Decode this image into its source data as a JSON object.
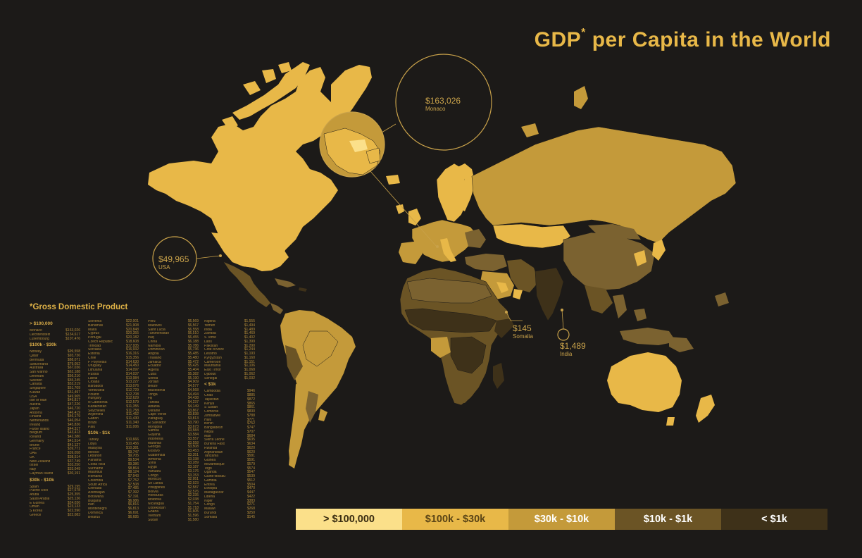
{
  "title": {
    "text": "GDP",
    "sup": "*",
    "rest": " per Capita in the World"
  },
  "footnote": "*Gross Domestic Product",
  "colors": {
    "background": "#1c1a18",
    "tier1": "#fbe08a",
    "tier2": "#e8b848",
    "tier3": "#c49a3a",
    "tier4": "#7b6230",
    "tier5": "#4a3a1f",
    "accent": "#c9a24a"
  },
  "callouts": {
    "monaco": {
      "value": "$163,026",
      "country": "Monaco"
    },
    "usa": {
      "value": "$49,965",
      "country": "USA"
    },
    "somalia": {
      "value": "$145",
      "country": "Somalia"
    },
    "india": {
      "value": "$1,489",
      "country": "India"
    }
  },
  "legend": [
    {
      "label": "> $100,000",
      "color": "#fbe08a",
      "text_color": "#3a2d12"
    },
    {
      "label": "$100k - $30k",
      "color": "#e8b848",
      "text_color": "#5a4416"
    },
    {
      "label": "$30k - $10k",
      "color": "#c49a3a",
      "text_color": "#ffffff"
    },
    {
      "label": "$10k - $1k",
      "color": "#6b5425",
      "text_color": "#ffffff"
    },
    {
      "label": "< $1k",
      "color": "#3e3119",
      "text_color": "#ffffff"
    }
  ],
  "columns": [
    [
      {
        "header": "> $100,000"
      },
      {
        "c": "Monaco",
        "v": "$163,026"
      },
      {
        "c": "Liechtenstein",
        "v": "$134,617"
      },
      {
        "c": "Luxembourg",
        "v": "$107,476"
      },
      {
        "header": "$100k - $30k"
      },
      {
        "c": "Norway",
        "v": "$99,558"
      },
      {
        "c": "Qatar",
        "v": "$93,736"
      },
      {
        "c": "Bermuda",
        "v": "$88,071"
      },
      {
        "c": "Switzerland",
        "v": "$79,052"
      },
      {
        "c": "Australia",
        "v": "$67,036"
      },
      {
        "c": "San Marino",
        "v": "$62,188"
      },
      {
        "c": "Denmark",
        "v": "$56,210"
      },
      {
        "c": "Sweden",
        "v": "$55,245"
      },
      {
        "c": "Canada",
        "v": "$52,219"
      },
      {
        "c": "Singapore",
        "v": "$51,709"
      },
      {
        "c": "Kuwait",
        "v": "$51,497"
      },
      {
        "c": "USA",
        "v": "$49,965"
      },
      {
        "c": "Isle of Man",
        "v": "$49,817"
      },
      {
        "c": "Austria",
        "v": "$47,226"
      },
      {
        "c": "Japan",
        "v": "$46,720"
      },
      {
        "c": "Andorra",
        "v": "$46,419"
      },
      {
        "c": "Finland",
        "v": "$46,179"
      },
      {
        "c": "Netherlands",
        "v": "$46,054"
      },
      {
        "c": "Ireland",
        "v": "$45,836"
      },
      {
        "c": "Faroe Island",
        "v": "$44,317"
      },
      {
        "c": "Belgium",
        "v": "$43,413"
      },
      {
        "c": "Iceland",
        "v": "$42,380"
      },
      {
        "c": "Germany",
        "v": "$41,514"
      },
      {
        "c": "Brunei",
        "v": "$41,127"
      },
      {
        "c": "France",
        "v": "$39,771"
      },
      {
        "c": "UAE",
        "v": "$39,058"
      },
      {
        "c": "UK",
        "v": "$38,514"
      },
      {
        "c": "New Zealand",
        "v": "$37,749"
      },
      {
        "c": "Israel",
        "v": "$33,250"
      },
      {
        "c": "Italy",
        "v": "$33,049"
      },
      {
        "c": "Cayman Island",
        "v": "$30,191"
      },
      {
        "header": "$30k - $10k"
      },
      {
        "c": "Spain",
        "v": "$29,195"
      },
      {
        "c": "Puerto Rico",
        "v": "$27,678"
      },
      {
        "c": "Aruba",
        "v": "$25,355"
      },
      {
        "c": "Saudi Arabia",
        "v": "$25,136"
      },
      {
        "c": "E Guinea",
        "v": "$24,036"
      },
      {
        "c": "Oman",
        "v": "$23,133"
      },
      {
        "c": "S Korea",
        "v": "$22,590"
      },
      {
        "c": "Greece",
        "v": "$22,083"
      }
    ],
    [
      {
        "c": "Slovenia",
        "v": "$22,001"
      },
      {
        "c": "Bahamas",
        "v": "$21,908"
      },
      {
        "c": "Malta",
        "v": "$20,848"
      },
      {
        "c": "Cyprus",
        "v": "$20,355"
      },
      {
        "c": "Portugal",
        "v": "$20,182"
      },
      {
        "c": "Czech Republic",
        "v": "$18,608"
      },
      {
        "c": "Trinidad",
        "v": "$17,935"
      },
      {
        "c": "Slovakia",
        "v": "$16,932"
      },
      {
        "c": "Estonia",
        "v": "$16,316"
      },
      {
        "c": "Chile",
        "v": "$15,356"
      },
      {
        "c": "F Polynesia",
        "v": "$14,630"
      },
      {
        "c": "Uruguay",
        "v": "$14,450"
      },
      {
        "c": "Lithuania",
        "v": "$14,097"
      },
      {
        "c": "Russia",
        "v": "$14,037"
      },
      {
        "c": "Latvia",
        "v": "$13,984"
      },
      {
        "c": "Croatia",
        "v": "$13,227"
      },
      {
        "c": "Barbados",
        "v": "$13,076"
      },
      {
        "c": "Venezuela",
        "v": "$12,729"
      },
      {
        "c": "Poland",
        "v": "$12,708"
      },
      {
        "c": "Hungary",
        "v": "$12,629"
      },
      {
        "c": "N Caledonia",
        "v": "$12,579"
      },
      {
        "c": "Kazakhstan",
        "v": "$11,355"
      },
      {
        "c": "Seychelles",
        "v": "$11,758"
      },
      {
        "c": "Argentina",
        "v": "$11,452"
      },
      {
        "c": "Gabon",
        "v": "$11,430"
      },
      {
        "c": "Brazil",
        "v": "$11,340"
      },
      {
        "c": "Palu",
        "v": "$11,006"
      },
      {
        "header": "$10k - $1k"
      },
      {
        "c": "Turkey",
        "v": "$10,666"
      },
      {
        "c": "Libya",
        "v": "$10,456"
      },
      {
        "c": "Malaysia",
        "v": "$10,381"
      },
      {
        "c": "Mexico",
        "v": "$9,747"
      },
      {
        "c": "Lebanon",
        "v": "$9,705"
      },
      {
        "c": "Panama",
        "v": "$9,534"
      },
      {
        "c": "Costa Rica",
        "v": "$9,386"
      },
      {
        "c": "Suriname",
        "v": "$8,864"
      },
      {
        "c": "Mauritius",
        "v": "$8,124"
      },
      {
        "c": "Romania",
        "v": "$7,943"
      },
      {
        "c": "Colombia",
        "v": "$7,752"
      },
      {
        "c": "South Africa",
        "v": "$7,508"
      },
      {
        "c": "Grenada",
        "v": "$7,485"
      },
      {
        "c": "Azerbaijan",
        "v": "$7,392"
      },
      {
        "c": "Botswana",
        "v": "$7,191"
      },
      {
        "c": "Bulgaria",
        "v": "$6,986"
      },
      {
        "c": "Iran",
        "v": "$6,816"
      },
      {
        "c": "Montenegro",
        "v": "$6,813"
      },
      {
        "c": "Dominica",
        "v": "$6,691"
      },
      {
        "c": "Belarus",
        "v": "$6,685"
      }
    ],
    [
      {
        "c": "Peru",
        "v": "$6,569"
      },
      {
        "c": "Maldives",
        "v": "$6,567"
      },
      {
        "c": "Saint Lucia",
        "v": "$6,558"
      },
      {
        "c": "Turkmenistan",
        "v": "$6,510"
      },
      {
        "c": "Iraq",
        "v": "$6,455"
      },
      {
        "c": "China",
        "v": "$6,188"
      },
      {
        "c": "Namibia",
        "v": "$5,786"
      },
      {
        "c": "Dominican",
        "v": "$5,736"
      },
      {
        "c": "Angola",
        "v": "$5,485"
      },
      {
        "c": "Thailand",
        "v": "$5,480"
      },
      {
        "c": "Jamaica",
        "v": "$5,472"
      },
      {
        "c": "Ecuador",
        "v": "$5,425"
      },
      {
        "c": "Algeria",
        "v": "$5,404"
      },
      {
        "c": "Cuba",
        "v": "$5,382"
      },
      {
        "c": "Serbia",
        "v": "$5,190"
      },
      {
        "c": "Jordan",
        "v": "$4,909"
      },
      {
        "c": "Belize",
        "v": "$4,577"
      },
      {
        "c": "Macedonia",
        "v": "$4,568"
      },
      {
        "c": "Tonga",
        "v": "$4,494"
      },
      {
        "c": "Fiji",
        "v": "$4,438"
      },
      {
        "c": "Tunisia",
        "v": "$4,237"
      },
      {
        "c": "Albania",
        "v": "$4,149"
      },
      {
        "c": "Ukraine",
        "v": "$3,867"
      },
      {
        "c": "Cape Verde",
        "v": "$3,838"
      },
      {
        "c": "Paraguay",
        "v": "$3,813"
      },
      {
        "c": "El Salvador",
        "v": "$3,790"
      },
      {
        "c": "Mongolia",
        "v": "$3,673"
      },
      {
        "c": "Samoa",
        "v": "$3,584"
      },
      {
        "c": "Guyana",
        "v": "$3,584"
      },
      {
        "c": "Indonesia",
        "v": "$3,557"
      },
      {
        "c": "Marshall",
        "v": "$3,558"
      },
      {
        "c": "Georgia",
        "v": "$3,508"
      },
      {
        "c": "Kosovo",
        "v": "$3,453"
      },
      {
        "c": "Guatemala",
        "v": "$3,351"
      },
      {
        "c": "Armenia",
        "v": "$3,338"
      },
      {
        "c": "Syria",
        "v": "$3,289"
      },
      {
        "c": "Egypt",
        "v": "$3,187"
      },
      {
        "c": "Vanuatu",
        "v": "$3,176"
      },
      {
        "c": "Congo",
        "v": "$3,153"
      },
      {
        "c": "Morocco",
        "v": "$2,951"
      },
      {
        "c": "Sri Lanka",
        "v": "$2,923"
      },
      {
        "c": "Philippines",
        "v": "$2,587"
      },
      {
        "c": "Bolivia",
        "v": "$2,576"
      },
      {
        "c": "Honduras",
        "v": "$2,335"
      },
      {
        "c": "Moldova",
        "v": "$2,038"
      },
      {
        "c": "Nicaragua",
        "v": "$1,754"
      },
      {
        "c": "Uzbekistan",
        "v": "$1,718"
      },
      {
        "c": "Ghana",
        "v": "$1,605"
      },
      {
        "c": "Vietnam",
        "v": "$1,596"
      },
      {
        "c": "Sudan",
        "v": "$1,580"
      }
    ],
    [
      {
        "c": "Nigeria",
        "v": "$1,555"
      },
      {
        "c": "Yemen",
        "v": "$1,494"
      },
      {
        "c": "India",
        "v": "$1,489"
      },
      {
        "c": "Zambia",
        "v": "$1,469"
      },
      {
        "c": "S Tome",
        "v": "$1,402"
      },
      {
        "c": "Laos",
        "v": "$1,399"
      },
      {
        "c": "Pakistan",
        "v": "$1,290"
      },
      {
        "c": "Cote d'Ivoire",
        "v": "$1,244"
      },
      {
        "c": "Lesotho",
        "v": "$1,193"
      },
      {
        "c": "Kyrgyzstan",
        "v": "$1,160"
      },
      {
        "c": "Cameroon",
        "v": "$1,151"
      },
      {
        "c": "Mauritania",
        "v": "$1,106"
      },
      {
        "c": "East Timor",
        "v": "$1,068"
      },
      {
        "c": "Djibouti",
        "v": "$1,062"
      },
      {
        "c": "Senegal",
        "v": "$1,032"
      },
      {
        "header": "< $1k"
      },
      {
        "c": "Cambodia",
        "v": "$946"
      },
      {
        "c": "Chad",
        "v": "$885"
      },
      {
        "c": "Tajikistan",
        "v": "$872"
      },
      {
        "c": "Kenya",
        "v": "$865"
      },
      {
        "c": "S Sudan",
        "v": "$861"
      },
      {
        "c": "Comoros",
        "v": "$830"
      },
      {
        "c": "Zimbabwe",
        "v": "$788"
      },
      {
        "c": "Haiti",
        "v": "$771"
      },
      {
        "c": "Benin",
        "v": "$752"
      },
      {
        "c": "Bangladesh",
        "v": "$747"
      },
      {
        "c": "Nepal",
        "v": "$707"
      },
      {
        "c": "Mali",
        "v": "$684"
      },
      {
        "c": "Sierra Leone",
        "v": "$635"
      },
      {
        "c": "Burkina Faso",
        "v": "$634"
      },
      {
        "c": "Rwanda",
        "v": "$620"
      },
      {
        "c": "Afghanistan",
        "v": "$620"
      },
      {
        "c": "Tanzania",
        "v": "$581"
      },
      {
        "c": "Guinea",
        "v": "$591"
      },
      {
        "c": "Mozambique",
        "v": "$579"
      },
      {
        "c": "Togo",
        "v": "$574"
      },
      {
        "c": "Uganda",
        "v": "$547"
      },
      {
        "c": "Guine-Bissau",
        "v": "$539"
      },
      {
        "c": "Gambia",
        "v": "$512"
      },
      {
        "c": "Eritrea",
        "v": "$504"
      },
      {
        "c": "Ethiopia",
        "v": "$470"
      },
      {
        "c": "Madagascar",
        "v": "$447"
      },
      {
        "c": "Liberia",
        "v": "$422"
      },
      {
        "c": "Niger",
        "v": "$383"
      },
      {
        "c": "Congo",
        "v": "$271"
      },
      {
        "c": "Malawi",
        "v": "$268"
      },
      {
        "c": "Burundi",
        "v": "$250"
      },
      {
        "c": "Somalia",
        "v": "$145"
      }
    ]
  ]
}
